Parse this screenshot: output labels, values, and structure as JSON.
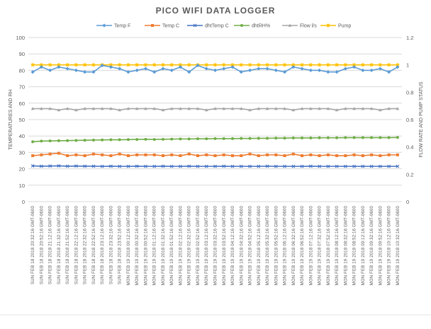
{
  "chart_data": {
    "type": "line",
    "title": "PICO WIFI DATA LOGGER",
    "ylabel_left": "TEMPERATURES AND RH",
    "ylabel_right": "FLOW RATE AND PUMP STATUS",
    "ylim_left": [
      0,
      100
    ],
    "ylim_right": [
      0,
      1.2
    ],
    "yticks_left": [
      "0",
      "10",
      "20",
      "30",
      "40",
      "50",
      "60",
      "70",
      "80",
      "90",
      "100"
    ],
    "yticks_right": [
      "0",
      "0.2",
      "0.4",
      "0.6",
      "0.8",
      "1",
      "1.2"
    ],
    "grid": true,
    "legend_position": "top",
    "x": [
      "SUN FEB 18 2018 20:32:16 GMT-0600",
      "SUN FEB 18 2018 20:52:16 GMT-0600",
      "SUN FEB 18 2018 21:12:16 GMT-0600",
      "SUN FEB 18 2018 21:32:16 GMT-0600",
      "SUN FEB 18 2018 21:52:16 GMT-0600",
      "SUN FEB 18 2018 22:12:16 GMT-0600",
      "SUN FEB 18 2018 22:32:16 GMT-0600",
      "SUN FEB 18 2018 22:52:16 GMT-0600",
      "SUN FEB 18 2018 23:12:16 GMT-0600",
      "SUN FEB 18 2018 23:32:16 GMT-0600",
      "SUN FEB 18 2018 23:52:16 GMT-0600",
      "MON FEB 19 2018 00:12:16 GMT-0600",
      "MON FEB 19 2018 00:32:16 GMT-0600",
      "MON FEB 19 2018 00:52:16 GMT-0600",
      "MON FEB 19 2018 01:12:16 GMT-0600",
      "MON FEB 19 2018 01:32:16 GMT-0600",
      "MON FEB 19 2018 01:52:16 GMT-0600",
      "MON FEB 19 2018 02:12:16 GMT-0600",
      "MON FEB 19 2018 02:32:16 GMT-0600",
      "MON FEB 19 2018 02:52:16 GMT-0600",
      "MON FEB 19 2018 03:12:16 GMT-0600",
      "MON FEB 19 2018 03:32:16 GMT-0600",
      "MON FEB 19 2018 03:52:16 GMT-0600",
      "MON FEB 19 2018 04:12:16 GMT-0600",
      "MON FEB 19 2018 04:32:16 GMT-0600",
      "MON FEB 19 2018 04:52:16 GMT-0600",
      "MON FEB 19 2018 05:12:16 GMT-0600",
      "MON FEB 19 2018 05:32:16 GMT-0600",
      "MON FEB 19 2018 05:52:16 GMT-0600",
      "MON FEB 19 2018 06:12:16 GMT-0600",
      "MON FEB 19 2018 06:32:16 GMT-0600",
      "MON FEB 19 2018 06:52:16 GMT-0600",
      "MON FEB 19 2018 07:12:16 GMT-0600",
      "MON FEB 19 2018 07:32:16 GMT-0600",
      "MON FEB 19 2018 07:52:16 GMT-0600",
      "MON FEB 19 2018 08:12:16 GMT-0600",
      "MON FEB 19 2018 08:32:16 GMT-0600",
      "MON FEB 19 2018 08:52:16 GMT-0600",
      "MON FEB 19 2018 09:12:16 GMT-0600",
      "MON FEB 19 2018 09:32:16 GMT-0600",
      "MON FEB 19 2018 09:52:16 GMT-0600",
      "MON FEB 19 2018 10:12:16 GMT-0600",
      "MON FEB 19 2018 10:32:16 GMT-0600"
    ],
    "series": [
      {
        "name": "Temp F",
        "axis": "left",
        "color": "#5b9bd5",
        "marker": "diamond",
        "values": [
          79,
          82,
          80,
          82,
          81,
          80,
          79,
          79,
          83,
          82,
          81,
          79,
          80,
          81,
          79,
          81,
          80,
          82,
          79,
          83,
          81,
          80,
          81,
          82,
          79,
          80,
          81,
          81,
          80,
          79,
          82,
          81,
          80,
          80,
          79,
          79,
          81,
          82,
          80,
          80,
          81,
          79,
          82
        ]
      },
      {
        "name": "Temp C",
        "axis": "left",
        "color": "#ed7d31",
        "marker": "square",
        "values": [
          28,
          28.5,
          29,
          29.5,
          28,
          28.5,
          28,
          29,
          28.5,
          28,
          29,
          28,
          28.5,
          28.5,
          28.5,
          28,
          28.5,
          28,
          29,
          28,
          28.5,
          28,
          28.5,
          28,
          28,
          29,
          28,
          28.5,
          28.5,
          28,
          29,
          28,
          28.5,
          28,
          28.5,
          28,
          28,
          28.5,
          28,
          28.5,
          28,
          28.5,
          28.5
        ]
      },
      {
        "name": "dhtTemp C",
        "axis": "left",
        "color": "#4472c4",
        "marker": "x",
        "values": [
          21.8,
          21.6,
          21.7,
          21.8,
          21.6,
          21.7,
          21.6,
          21.6,
          21.5,
          21.6,
          21.5,
          21.5,
          21.6,
          21.5,
          21.5,
          21.6,
          21.5,
          21.5,
          21.6,
          21.5,
          21.5,
          21.5,
          21.6,
          21.5,
          21.5,
          21.5,
          21.5,
          21.6,
          21.5,
          21.5,
          21.5,
          21.5,
          21.6,
          21.5,
          21.5,
          21.5,
          21.5,
          21.5,
          21.5,
          21.5,
          21.5,
          21.5,
          21.5
        ]
      },
      {
        "name": "dhtRH%",
        "axis": "left",
        "color": "#70ad47",
        "marker": "circle",
        "values": [
          36.5,
          36.9,
          37,
          37.1,
          37.2,
          37.3,
          37.4,
          37.5,
          37.6,
          37.7,
          37.7,
          37.8,
          37.9,
          38,
          37.9,
          38,
          38.1,
          38.2,
          38.2,
          38.3,
          38.3,
          38.4,
          38.4,
          38.4,
          38.5,
          38.5,
          38.6,
          38.6,
          38.7,
          38.7,
          38.8,
          38.8,
          38.8,
          38.9,
          38.9,
          38.9,
          39,
          39,
          39,
          39,
          39,
          39,
          39.1
        ]
      },
      {
        "name": "Flow l/s",
        "axis": "right",
        "color": "#a5a5a5",
        "marker": "triangle",
        "values": [
          0.68,
          0.68,
          0.68,
          0.67,
          0.68,
          0.67,
          0.68,
          0.68,
          0.68,
          0.68,
          0.67,
          0.68,
          0.68,
          0.68,
          0.68,
          0.67,
          0.68,
          0.68,
          0.68,
          0.68,
          0.67,
          0.68,
          0.68,
          0.68,
          0.68,
          0.67,
          0.68,
          0.68,
          0.68,
          0.68,
          0.67,
          0.68,
          0.68,
          0.68,
          0.68,
          0.67,
          0.68,
          0.68,
          0.68,
          0.68,
          0.67,
          0.68,
          0.68
        ]
      },
      {
        "name": "Pump",
        "axis": "right",
        "color": "#ffc000",
        "marker": "star",
        "values": [
          1,
          1,
          1,
          1,
          1,
          1,
          1,
          1,
          1,
          1,
          1,
          1,
          1,
          1,
          1,
          1,
          1,
          1,
          1,
          1,
          1,
          1,
          1,
          1,
          1,
          1,
          1,
          1,
          1,
          1,
          1,
          1,
          1,
          1,
          1,
          1,
          1,
          1,
          1,
          1,
          1,
          1,
          1
        ]
      }
    ]
  }
}
